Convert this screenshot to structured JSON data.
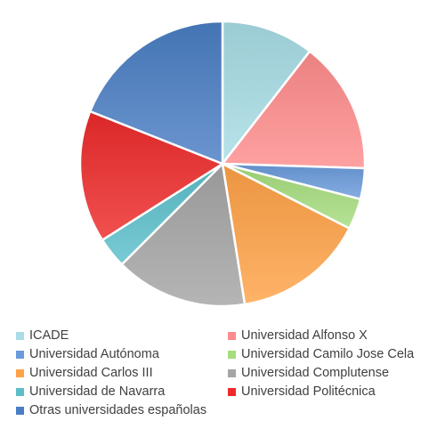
{
  "chart_data": {
    "type": "pie",
    "title": "",
    "legend_position": "bottom",
    "start_angle_deg": 0,
    "direction": "clockwise",
    "slices": [
      {
        "label": "ICADE",
        "value": 10.5,
        "color": "#a8dde5"
      },
      {
        "label": "Universidad Alfonso X",
        "value": 15.0,
        "color": "#ff8c8c"
      },
      {
        "label": "Universidad Autónoma",
        "value": 3.5,
        "color": "#6a9bdc"
      },
      {
        "label": "Universidad Camilo Jose Cela",
        "value": 3.5,
        "color": "#a6dd7e"
      },
      {
        "label": "Universidad Carlos III",
        "value": 15.0,
        "color": "#ffa247"
      },
      {
        "label": "Universidad Complutense",
        "value": 15.0,
        "color": "#a5a5a5"
      },
      {
        "label": "Universidad de Navarra",
        "value": 3.5,
        "color": "#5bbfca"
      },
      {
        "label": "Universidad Politécnica",
        "value": 15.0,
        "color": "#ee2a2a"
      },
      {
        "label": "Otras universidades españolas",
        "value": 19.0,
        "color": "#4a7ec4"
      }
    ]
  }
}
